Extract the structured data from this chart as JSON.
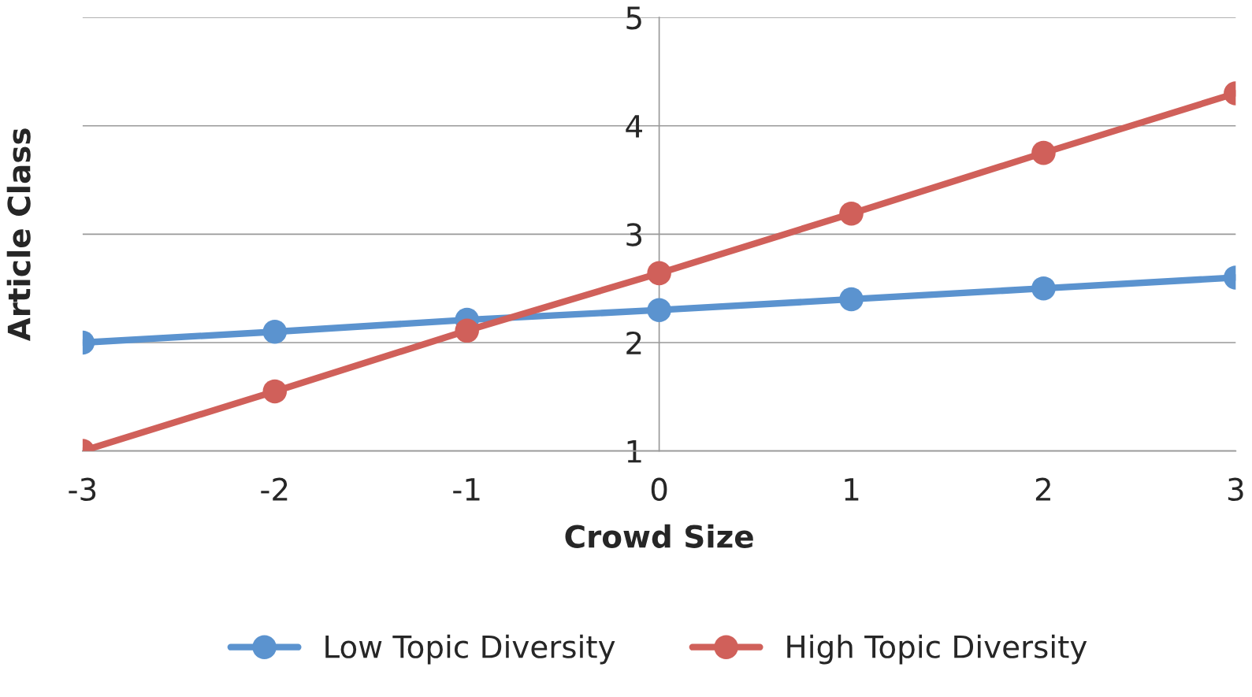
{
  "chart_data": {
    "type": "line",
    "xlabel": "Crowd Size",
    "ylabel": "Article Class",
    "x": [
      -3,
      -2,
      -1,
      0,
      1,
      2,
      3
    ],
    "series": [
      {
        "name": "Low Topic Diversity",
        "color": "#5b93cf",
        "values": [
          2.0,
          2.1,
          2.21,
          2.3,
          2.4,
          2.5,
          2.6
        ]
      },
      {
        "name": "High Topic Diversity",
        "color": "#d0605a",
        "values": [
          1.0,
          1.55,
          2.11,
          2.64,
          3.19,
          3.75,
          4.3
        ]
      }
    ],
    "xlim": [
      -3,
      3
    ],
    "ylim": [
      1,
      5
    ],
    "xticks": [
      -3,
      -2,
      -1,
      0,
      1,
      2,
      3
    ],
    "yticks": [
      1,
      2,
      3,
      4,
      5
    ],
    "grid": "y",
    "legend": "bottom",
    "marker": "circle",
    "line_style": "solid"
  }
}
